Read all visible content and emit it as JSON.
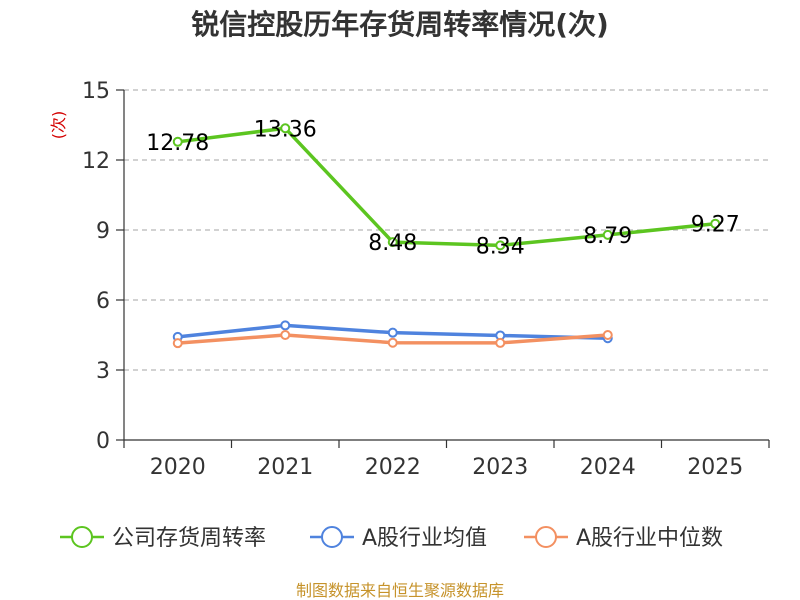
{
  "chart_data": {
    "type": "line",
    "title": "锐信控股历年存货周转率情况(次)",
    "ylabel": "(次)",
    "xlabel": "",
    "categories": [
      "2020",
      "2021",
      "2022",
      "2023",
      "2024",
      "2025"
    ],
    "ylim": [
      0,
      15
    ],
    "yticks": [
      0,
      3,
      6,
      9,
      12,
      15
    ],
    "grid": "horizontal-dashed",
    "legend_position": "bottom",
    "series": [
      {
        "name": "公司存货周转率",
        "color": "#5cc520",
        "values": [
          12.78,
          13.36,
          8.48,
          8.34,
          8.79,
          9.27
        ],
        "labels": [
          "12.78",
          "13.36",
          "8.48",
          "8.34",
          "8.79",
          "9.27"
        ]
      },
      {
        "name": "A股行业均值",
        "color": "#4f83de",
        "values": [
          4.42,
          4.91,
          4.6,
          4.48,
          4.36,
          null
        ]
      },
      {
        "name": "A股行业中位数",
        "color": "#f39061",
        "values": [
          4.15,
          4.5,
          4.17,
          4.16,
          4.5,
          null
        ]
      }
    ],
    "source": "制图数据来自恒生聚源数据库"
  }
}
